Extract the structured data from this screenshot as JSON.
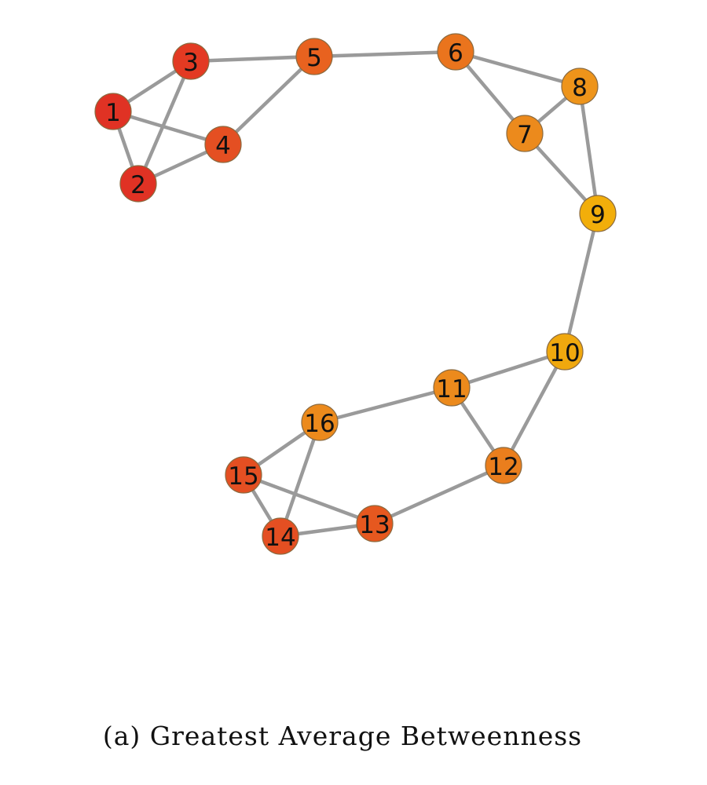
{
  "caption": "(a) Greatest Average Betweenness",
  "colors": {
    "edge": "#9a9a9a",
    "red": "#e03224",
    "red_orange": "#e44f22",
    "orange_dark": "#e8621f",
    "orange": "#ec8a1c",
    "amber": "#f0a80e"
  },
  "nodes": [
    {
      "id": "1",
      "label": "1",
      "color": "#e03224"
    },
    {
      "id": "2",
      "label": "2",
      "color": "#e03224"
    },
    {
      "id": "3",
      "label": "3",
      "color": "#e33a22"
    },
    {
      "id": "4",
      "label": "4",
      "color": "#e44f22"
    },
    {
      "id": "5",
      "label": "5",
      "color": "#e8621f"
    },
    {
      "id": "6",
      "label": "6",
      "color": "#ea741d"
    },
    {
      "id": "7",
      "label": "7",
      "color": "#ec8a1c"
    },
    {
      "id": "8",
      "label": "8",
      "color": "#ee941a"
    },
    {
      "id": "9",
      "label": "9",
      "color": "#f2ae0a"
    },
    {
      "id": "10",
      "label": "10",
      "color": "#f0a80e"
    },
    {
      "id": "11",
      "label": "11",
      "color": "#ec8a1c"
    },
    {
      "id": "12",
      "label": "12",
      "color": "#ea7e1d"
    },
    {
      "id": "13",
      "label": "13",
      "color": "#e6581f"
    },
    {
      "id": "14",
      "label": "14",
      "color": "#e44f22"
    },
    {
      "id": "15",
      "label": "15",
      "color": "#e44f22"
    },
    {
      "id": "16",
      "label": "16",
      "color": "#ec8a1c"
    }
  ],
  "edges": [
    [
      "1",
      "3"
    ],
    [
      "1",
      "4"
    ],
    [
      "1",
      "2"
    ],
    [
      "2",
      "3"
    ],
    [
      "2",
      "4"
    ],
    [
      "3",
      "5"
    ],
    [
      "4",
      "5"
    ],
    [
      "5",
      "6"
    ],
    [
      "6",
      "7"
    ],
    [
      "6",
      "8"
    ],
    [
      "7",
      "8"
    ],
    [
      "7",
      "9"
    ],
    [
      "8",
      "9"
    ],
    [
      "9",
      "10"
    ],
    [
      "10",
      "11"
    ],
    [
      "10",
      "12"
    ],
    [
      "11",
      "12"
    ],
    [
      "11",
      "16"
    ],
    [
      "12",
      "13"
    ],
    [
      "13",
      "14"
    ],
    [
      "13",
      "15"
    ],
    [
      "14",
      "15"
    ],
    [
      "14",
      "16"
    ],
    [
      "15",
      "16"
    ]
  ]
}
